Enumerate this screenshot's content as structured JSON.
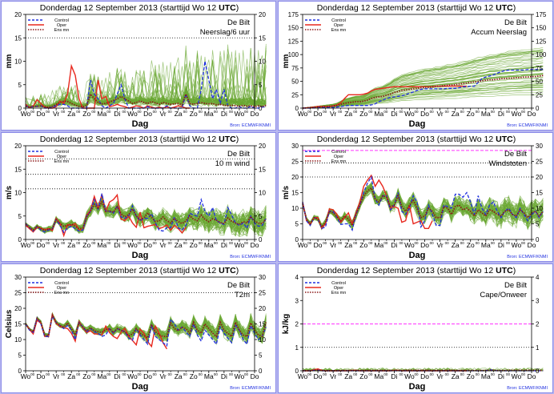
{
  "header": {
    "title": "Donderdag 12 September 2013",
    "start": "(starttijd  Wo 12 ",
    "utc": "UTC",
    "close": ")"
  },
  "common": {
    "station": "De Bilt",
    "xlabel": "Dag",
    "source": "Bron: ECMWF/KNMI",
    "day_labels": [
      "Wo",
      "Do",
      "Vr",
      "Za",
      "Zo",
      "Ma",
      "Di",
      "Wo",
      "Do",
      "Vr",
      "Za",
      "Zo",
      "Ma",
      "Di",
      "Wo",
      "Do"
    ],
    "hour_label": "00",
    "legend": [
      {
        "name": "Control",
        "color": "#2030e0",
        "style": "dashed"
      },
      {
        "name": "Oper",
        "color": "#e8281e",
        "style": "solid"
      },
      {
        "name": "Ens mn",
        "color": "#8b1a1a",
        "style": "dotted"
      }
    ],
    "colors": {
      "control": "#2030e0",
      "oper": "#e8281e",
      "ensmean": "#8b1a1a",
      "members": "#6aa832",
      "threshold": "#ff33ff"
    }
  },
  "chart_data": [
    {
      "type": "line",
      "id": "neerslag",
      "subtitle": "Neerslag/6 uur",
      "ylabel": "mm",
      "ylim": [
        0,
        20
      ],
      "yticks": [
        0,
        5,
        10,
        15,
        20
      ],
      "grid": [
        15
      ],
      "threshold": null,
      "x_days": [
        0,
        15
      ],
      "step_hours": 6,
      "control": [
        0.5,
        0.2,
        0.3,
        0.4,
        0.5,
        0,
        0,
        0.2,
        0.5,
        0.8,
        0.8,
        0.5,
        0,
        0,
        0,
        0,
        0,
        6,
        3,
        2,
        0.5,
        0,
        0.5,
        1,
        3,
        5,
        2,
        0,
        0,
        0,
        0,
        0,
        0.3,
        0,
        0,
        0,
        0,
        0.5,
        0,
        0,
        0,
        0,
        3,
        0.5,
        0,
        0,
        4,
        10,
        6,
        2,
        4,
        1,
        4,
        0.5,
        0,
        0,
        0.3,
        0,
        0,
        0.4,
        0,
        0,
        0.2,
        0.3
      ],
      "oper": [
        0.8,
        0.1,
        0.5,
        1.8,
        1,
        0.2,
        0,
        0,
        0.3,
        1.5,
        1,
        3,
        9,
        7,
        2,
        0,
        0,
        0,
        0,
        6,
        2,
        2.5,
        0.3,
        0.5,
        0.8,
        0.5,
        0.3,
        0,
        0.2,
        0.5,
        0.3,
        0,
        0.5,
        0.2,
        0,
        0.2,
        0,
        0.3,
        0,
        0.2,
        0.5,
        0.3,
        0,
        0
      ],
      "ensmean": [
        0.4,
        0.2,
        0.3,
        0.4,
        0.5,
        0.3,
        0.2,
        0.4,
        0.8,
        1.2,
        1.5,
        1.4,
        1,
        0.6,
        0.4,
        0.3,
        0.5,
        3,
        2,
        1.2,
        0.9,
        1,
        1.3,
        1.6,
        2,
        2.5,
        2,
        1.5,
        1,
        1.2,
        1.5,
        1.2,
        1,
        1.4,
        1.1,
        0.8,
        1.2,
        1,
        0.8,
        0.9,
        1,
        0.7,
        3,
        1,
        0.8,
        1,
        1.2,
        1,
        0.9,
        1,
        0.7,
        0.8,
        0.6,
        0.5,
        0.6,
        0.5,
        0.4,
        0.6,
        0.4,
        0.5,
        0.3,
        0.5,
        0.3,
        0.6
      ],
      "member_count": 50,
      "member_spread": 4.5,
      "nonneg": true,
      "accum": false
    },
    {
      "type": "line",
      "id": "accum",
      "subtitle": "Accum Neerslag",
      "ylabel": "mm",
      "ylim": [
        0,
        175
      ],
      "yticks": [
        0,
        25,
        50,
        75,
        100,
        125,
        150,
        175
      ],
      "grid": [],
      "threshold": null,
      "x_days": [
        0,
        15
      ],
      "step_hours": 6,
      "control": [
        0,
        0,
        0,
        0.5,
        1,
        1,
        1,
        1,
        1,
        2,
        3,
        4,
        5,
        5,
        5,
        5,
        5,
        5,
        6,
        8,
        12,
        15,
        18,
        20,
        21,
        22,
        23,
        25,
        28,
        30,
        33,
        35,
        36,
        36,
        36,
        36,
        36,
        36,
        37,
        37,
        37,
        38,
        40,
        40,
        41,
        41,
        48,
        55,
        58,
        60,
        62,
        65,
        68,
        70,
        71,
        71,
        71,
        71,
        71,
        72,
        72,
        72,
        72,
        72
      ],
      "oper": [
        0,
        0.5,
        1,
        2,
        3,
        3,
        3,
        3,
        4,
        6,
        10,
        18,
        25,
        25,
        25,
        25,
        26,
        28,
        32,
        35,
        36,
        37,
        38,
        39,
        40,
        40,
        40,
        40,
        40,
        40,
        40,
        40,
        40,
        40,
        40,
        41,
        41,
        41,
        41,
        41,
        41,
        41,
        41,
        41
      ],
      "ensmean": [
        0,
        0.5,
        1,
        1.5,
        2,
        2.5,
        3,
        3.5,
        4,
        5,
        7,
        9,
        10,
        11,
        12,
        12,
        13,
        15,
        18,
        20,
        21,
        22,
        24,
        26,
        29,
        31,
        33,
        34,
        35,
        36,
        37,
        38,
        39,
        39,
        40,
        41,
        41,
        42,
        43,
        43,
        44,
        45,
        46,
        47,
        48,
        49,
        50,
        51,
        52,
        53,
        53,
        54,
        55,
        55,
        56,
        56,
        57,
        57,
        58,
        58,
        59,
        59,
        60,
        61
      ],
      "member_count": 50,
      "member_spread": 0.9,
      "nonneg": true,
      "accum": true
    },
    {
      "type": "line",
      "id": "wind",
      "subtitle": "10 m wind",
      "ylabel": "m/s",
      "ylim": [
        0,
        20
      ],
      "yticks": [
        0,
        5,
        10,
        15,
        20
      ],
      "grid": [
        10.8,
        13.9,
        17.2
      ],
      "threshold": null,
      "x_days": [
        0,
        15
      ],
      "step_hours": 6,
      "control": [
        3.4,
        2.5,
        1.8,
        2.8,
        2,
        1.6,
        2,
        2.2,
        4.3,
        3,
        1.5,
        2.5,
        2.8,
        2.3,
        1.8,
        2,
        5,
        6,
        8.5,
        6.5,
        9.8,
        6,
        6,
        5.6,
        7.2,
        4.8,
        4.5,
        5,
        7.2,
        5,
        4,
        4.5,
        4.5,
        5.5,
        3.5,
        2,
        1.8,
        2.5,
        2.5,
        4.8,
        2.5,
        2,
        3,
        5.6,
        5.2,
        5,
        8.5,
        6,
        5,
        6.8,
        4,
        3.5,
        3.2,
        6.8,
        5.2,
        3.5,
        3,
        3.5,
        2.4,
        5,
        3.5,
        2.8,
        3,
        4.5
      ],
      "oper": [
        3,
        2.3,
        1.6,
        2.6,
        2.4,
        2.1,
        2.3,
        1.9,
        4.5,
        3.4,
        0.8,
        3.2,
        3,
        3.4,
        2.1,
        2,
        5.2,
        6.2,
        9.2,
        6.8,
        9.6,
        6,
        8,
        8.5,
        9.5,
        4.4,
        4,
        5,
        3.5,
        2.6,
        5.8,
        2.5,
        2.8,
        3,
        3.2,
        2.3,
        2.6,
        3.1,
        2,
        3,
        2.3,
        1.4,
        2.6
      ],
      "ensmean": [
        3.3,
        2.6,
        2,
        2.8,
        2.3,
        1.9,
        2.2,
        2.3,
        4.2,
        3.5,
        2.8,
        3,
        3.3,
        2.8,
        2.3,
        2.4,
        4.8,
        6,
        7.5,
        6.5,
        8,
        6,
        6.1,
        5.8,
        7,
        5.5,
        4.8,
        5.3,
        6.5,
        5,
        4.2,
        4.6,
        5.7,
        4.7,
        3.8,
        4,
        4.8,
        4,
        3.5,
        4.5,
        3.8,
        3.4,
        3.9,
        5.1,
        4.3,
        4,
        5.2,
        4.3,
        3.8,
        4.4,
        4.1,
        3.6,
        3.4,
        4.6,
        3.9,
        3.5,
        3.2,
        3.8,
        3.5,
        4.9,
        3.9,
        3.5,
        3.4,
        4.4
      ],
      "member_count": 50,
      "member_spread": 2.2,
      "nonneg": true,
      "accum": false
    },
    {
      "type": "line",
      "id": "gust",
      "subtitle": "Windstoten",
      "ylabel": "m/s",
      "ylim": [
        0,
        30
      ],
      "yticks": [
        0,
        5,
        10,
        15,
        20,
        25,
        30
      ],
      "grid": [
        20,
        24.5
      ],
      "threshold": 28.5,
      "x_days": [
        0,
        15
      ],
      "step_hours": 6,
      "control": [
        12,
        6,
        4.5,
        7,
        6.5,
        3.5,
        4,
        9,
        9,
        7,
        4.8,
        5,
        5,
        3,
        8,
        11,
        15,
        18,
        20,
        13,
        11,
        14,
        14,
        9.5,
        11,
        15,
        9,
        8,
        10,
        14,
        12,
        4,
        6,
        11,
        8,
        4.5,
        4.5,
        11,
        10.5,
        10,
        14.5,
        14.5,
        13.5,
        15,
        12,
        8,
        14,
        10,
        8,
        11,
        12,
        9,
        7,
        9,
        10,
        8,
        7,
        10,
        8,
        6,
        8,
        9,
        7,
        9
      ],
      "oper": [
        12,
        6,
        4.8,
        7,
        7,
        3.5,
        5,
        9.8,
        9.5,
        8,
        5.5,
        7,
        8.5,
        5,
        8.5,
        12,
        17,
        19,
        20.5,
        17,
        19,
        17,
        14,
        10,
        10.5,
        10,
        5.5,
        6,
        11,
        5,
        5.5,
        6,
        3.5,
        3.5,
        6
      ],
      "ensmean": [
        11.5,
        6.5,
        5,
        7,
        6.5,
        4,
        5.5,
        9,
        8.5,
        7.2,
        6,
        7.5,
        6.5,
        4.5,
        8,
        11,
        14,
        15.5,
        16.5,
        13,
        12,
        14,
        13.5,
        10.5,
        11,
        14,
        10.5,
        9,
        11,
        12.5,
        10,
        7,
        7.5,
        10,
        9,
        7,
        7,
        10.5,
        10,
        8,
        10.5,
        11,
        9.5,
        10,
        9,
        7.5,
        9.5,
        8.5,
        7.5,
        9.5,
        9,
        8,
        7.5,
        9,
        9.5,
        8,
        7.5,
        9.5,
        8.5,
        7,
        8.5,
        9,
        7.5,
        9
      ],
      "member_count": 50,
      "member_spread": 3.2,
      "nonneg": true,
      "accum": false
    },
    {
      "type": "line",
      "id": "t2m",
      "subtitle": "T2m",
      "ylabel": "Celsius",
      "ylim": [
        0,
        30
      ],
      "yticks": [
        0,
        5,
        10,
        15,
        20,
        25,
        30
      ],
      "grid": [
        25
      ],
      "threshold": null,
      "x_days": [
        0,
        15
      ],
      "step_hours": 6,
      "control": [
        15,
        13,
        12.3,
        17,
        15,
        11,
        11,
        17.5,
        15.5,
        14.5,
        13.5,
        14.5,
        13,
        10,
        15.5,
        14,
        12.5,
        13.5,
        12.5,
        12,
        11,
        11.5,
        13.5,
        12,
        13.5,
        13,
        12.5,
        10.5,
        9.8,
        13.5,
        11.5,
        10,
        8.5,
        14.5,
        11,
        10,
        9,
        8,
        16.5,
        15,
        13,
        14,
        12.5,
        11,
        15,
        11.5,
        9.5,
        13,
        11.5,
        10,
        8.5,
        14,
        12,
        10.5,
        9,
        14.5,
        13,
        10,
        8.5,
        14.5,
        12,
        10,
        11,
        14
      ],
      "oper": [
        15,
        13.2,
        11.8,
        16.2,
        15.2,
        11,
        10.9,
        18,
        15.2,
        14.2,
        13.8,
        13.5,
        12,
        9.5,
        15.8,
        13.8,
        12.2,
        12.8,
        11.8,
        11.8,
        11.5,
        14.3,
        12.2,
        11,
        10.3,
        12.3,
        13.6,
        11,
        9.7,
        8.3,
        13.3,
        12,
        9.3,
        7.8,
        14.3,
        12,
        9,
        7
      ],
      "ensmean": [
        15,
        13.3,
        12.5,
        16.8,
        15.5,
        11.5,
        11.3,
        17.8,
        15.4,
        14.5,
        14,
        15.3,
        13.5,
        11.5,
        15.3,
        14,
        12.8,
        13.8,
        12.8,
        12.5,
        12.3,
        13.2,
        13.5,
        12.2,
        13.5,
        13,
        12.5,
        11.2,
        11.8,
        13.5,
        12,
        11.3,
        10.5,
        14.8,
        12.5,
        11.5,
        11,
        11,
        15.3,
        13.5,
        12.8,
        14,
        13.5,
        12,
        15.5,
        13,
        12,
        15,
        13.5,
        12,
        11,
        15.5,
        13,
        12,
        11,
        15.5,
        13,
        11.5,
        11,
        15.3,
        13,
        11.5,
        11,
        15.5
      ],
      "member_count": 50,
      "member_spread": 2.2,
      "nonneg": false,
      "accum": false
    },
    {
      "type": "line",
      "id": "cape",
      "subtitle": "Cape/Onweer",
      "ylabel": "kJ/kg",
      "ylim": [
        0,
        4
      ],
      "yticks": [
        0,
        1,
        2,
        3,
        4
      ],
      "grid": [
        1
      ],
      "threshold": 2,
      "x_days": [
        0,
        15
      ],
      "step_hours": 6,
      "control": [
        0,
        0,
        0,
        0.02,
        0.03,
        0,
        0,
        0,
        0,
        0,
        0,
        0,
        0,
        0,
        0,
        0,
        0,
        0,
        0,
        0,
        0,
        0,
        0,
        0,
        0,
        0,
        0,
        0,
        0,
        0,
        0,
        0,
        0,
        0,
        0,
        0,
        0,
        0,
        0,
        0,
        0,
        0,
        0,
        0,
        0,
        0,
        0,
        0,
        0,
        0.05,
        0.02,
        0,
        0,
        0,
        0,
        0,
        0,
        0,
        0,
        0,
        0,
        0,
        0,
        0
      ],
      "oper": [
        0,
        0,
        0,
        0.05,
        0.08,
        0.02,
        0,
        0,
        0,
        0,
        0,
        0,
        0,
        0.02,
        0.02,
        0,
        0,
        0,
        0,
        0,
        0,
        0,
        0,
        0,
        0.02,
        0.02,
        0,
        0,
        0,
        0,
        0,
        0,
        0,
        0,
        0,
        0,
        0,
        0,
        0,
        0,
        0,
        0,
        0,
        0
      ],
      "ensmean": [
        0,
        0,
        0,
        0.02,
        0.03,
        0.01,
        0,
        0,
        0,
        0,
        0.01,
        0.01,
        0.01,
        0.01,
        0.01,
        0.01,
        0.01,
        0.01,
        0.01,
        0.01,
        0.01,
        0.01,
        0.01,
        0.01,
        0.01,
        0.01,
        0.01,
        0.02,
        0.02,
        0.02,
        0.02,
        0.02,
        0.02,
        0.02,
        0.01,
        0.01,
        0.01,
        0.01,
        0.02,
        0.02,
        0.01,
        0.01,
        0.01,
        0.01,
        0.01,
        0.01,
        0.01,
        0.01,
        0.01,
        0.02,
        0.02,
        0.01,
        0.01,
        0.01,
        0.02,
        0.02,
        0.02,
        0.02,
        0.02,
        0.02,
        0.02,
        0.02,
        0.01,
        0.02
      ],
      "member_count": 50,
      "member_spread": 0.06,
      "nonneg": true,
      "accum": false
    }
  ]
}
